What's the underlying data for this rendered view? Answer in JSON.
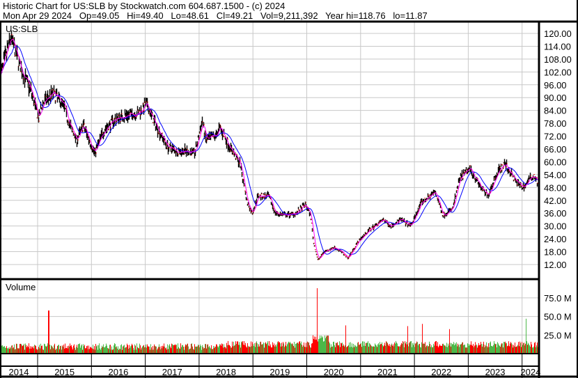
{
  "header": {
    "title": "Historic Chart for US:SLB by Stockwatch.com 604.687.1500 - (c) 2024",
    "quote": "Mon Apr 29 2024   Op=49.05   Hi=49.40   Lo=48.61   Cl=49.21   Vol=9,211,392   Year hi=118.76   lo=11.87"
  },
  "chart_data": [
    {
      "type": "line",
      "title": "US:SLB",
      "xlabel": "",
      "ylabel": "",
      "ylim": [
        12,
        120
      ],
      "y_ticks": [
        "120.00",
        "114.00",
        "108.00",
        "102.00",
        "96.00",
        "90.00",
        "84.00",
        "78.00",
        "72.00",
        "66.00",
        "60.00",
        "54.00",
        "48.00",
        "42.00",
        "36.00",
        "30.00",
        "24.00",
        "18.00",
        "12.00"
      ],
      "x_ticks": [
        "2014",
        "2015",
        "2016",
        "2017",
        "2018",
        "2019",
        "2020",
        "2021",
        "2022",
        "2023",
        "2024"
      ],
      "grid": true,
      "colors": {
        "bars": "#000000",
        "close_tick": "#ff0000",
        "ma_short": "#ff00ff",
        "ma_long": "#0000ff",
        "grid": "#c8c8c8"
      },
      "series": [
        {
          "values_type": "price_close",
          "points": [
            [
              "2014-04-20",
              100
            ],
            [
              "2014-07-01",
              118
            ],
            [
              "2014-09-10",
              103
            ],
            [
              "2014-11-15",
              93
            ],
            [
              "2015-01-05",
              80
            ],
            [
              "2015-02-01",
              87
            ],
            [
              "2015-04-10",
              92
            ],
            [
              "2015-06-20",
              87
            ],
            [
              "2015-08-05",
              77
            ],
            [
              "2015-09-20",
              70
            ],
            [
              "2015-11-05",
              77
            ],
            [
              "2016-01-20",
              64
            ],
            [
              "2016-03-25",
              75
            ],
            [
              "2016-06-10",
              80
            ],
            [
              "2016-09-10",
              82
            ],
            [
              "2016-11-20",
              83
            ],
            [
              "2017-01-05",
              87
            ],
            [
              "2017-02-25",
              79
            ],
            [
              "2017-05-30",
              67
            ],
            [
              "2017-08-05",
              65
            ],
            [
              "2017-10-15",
              65
            ],
            [
              "2017-12-01",
              64
            ],
            [
              "2018-01-20",
              79
            ],
            [
              "2018-02-15",
              70
            ],
            [
              "2018-04-20",
              72
            ],
            [
              "2018-05-20",
              76
            ],
            [
              "2018-07-25",
              67
            ],
            [
              "2018-10-05",
              59
            ],
            [
              "2018-11-20",
              41
            ],
            [
              "2018-12-25",
              36
            ],
            [
              "2019-02-01",
              44
            ],
            [
              "2019-04-15",
              44
            ],
            [
              "2019-05-30",
              36
            ],
            [
              "2019-08-10",
              35
            ],
            [
              "2019-10-20",
              36
            ],
            [
              "2019-12-20",
              40
            ],
            [
              "2020-01-25",
              35
            ],
            [
              "2020-02-15",
              22
            ],
            [
              "2020-03-15",
              14
            ],
            [
              "2020-04-25",
              18
            ],
            [
              "2020-07-05",
              20
            ],
            [
              "2020-08-20",
              18
            ],
            [
              "2020-10-05",
              15
            ],
            [
              "2020-12-15",
              23
            ],
            [
              "2021-02-25",
              28
            ],
            [
              "2021-06-01",
              33
            ],
            [
              "2021-07-20",
              30
            ],
            [
              "2021-09-25",
              33
            ],
            [
              "2021-12-05",
              30
            ],
            [
              "2022-02-15",
              41
            ],
            [
              "2022-05-20",
              46
            ],
            [
              "2022-07-10",
              35
            ],
            [
              "2022-09-15",
              38
            ],
            [
              "2022-11-01",
              52
            ],
            [
              "2023-01-10",
              57
            ],
            [
              "2023-03-25",
              48
            ],
            [
              "2023-05-10",
              44
            ],
            [
              "2023-07-20",
              56
            ],
            [
              "2023-09-05",
              59
            ],
            [
              "2023-11-15",
              51
            ],
            [
              "2024-01-05",
              48
            ],
            [
              "2024-03-15",
              54
            ],
            [
              "2024-04-29",
              49.21
            ]
          ]
        }
      ]
    },
    {
      "type": "bar",
      "title": "Volume",
      "ylim": [
        0,
        90000000
      ],
      "y_ticks": [
        "75.0 M",
        "50.0 M",
        "25.0 M"
      ],
      "colors": {
        "up": "#4cb848",
        "down": "#ff0000",
        "unchanged": "#a0a0a0"
      },
      "volume_spikes": [
        [
          "2015-03-15",
          58000000
        ],
        [
          "2020-03-10",
          88000000
        ],
        [
          "2020-09-20",
          38000000
        ],
        [
          "2021-11-15",
          37000000
        ],
        [
          "2022-02-20",
          40000000
        ],
        [
          "2022-08-25",
          33000000
        ],
        [
          "2024-01-25",
          47000000
        ]
      ]
    }
  ]
}
